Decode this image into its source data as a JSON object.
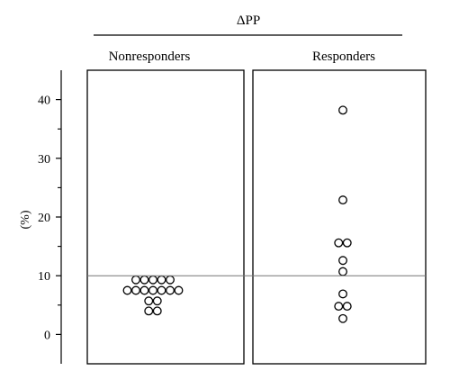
{
  "chart_data": {
    "type": "scatter",
    "title": "ΔPP",
    "ylabel": "(%)",
    "ylim": [
      -5,
      45
    ],
    "yticks": [
      0,
      10,
      20,
      30,
      40
    ],
    "yticks_minor": [
      5,
      15,
      25,
      35
    ],
    "reference_line": 10,
    "grid": false,
    "panels": [
      {
        "name": "Nonresponders",
        "points": [
          {
            "y": 9.3,
            "slot": -2
          },
          {
            "y": 9.3,
            "slot": -1
          },
          {
            "y": 9.3,
            "slot": 0
          },
          {
            "y": 9.3,
            "slot": 1
          },
          {
            "y": 9.3,
            "slot": 2
          },
          {
            "y": 7.5,
            "slot": -3
          },
          {
            "y": 7.5,
            "slot": -2
          },
          {
            "y": 7.5,
            "slot": -1
          },
          {
            "y": 7.5,
            "slot": 0
          },
          {
            "y": 7.5,
            "slot": 1
          },
          {
            "y": 7.5,
            "slot": 2
          },
          {
            "y": 7.5,
            "slot": 3
          },
          {
            "y": 5.7,
            "slot": -0.5
          },
          {
            "y": 5.7,
            "slot": 0.5
          },
          {
            "y": 4.0,
            "slot": -0.5
          },
          {
            "y": 4.0,
            "slot": 0.5
          }
        ]
      },
      {
        "name": "Responders",
        "points": [
          {
            "y": 38.2,
            "slot": 0
          },
          {
            "y": 22.9,
            "slot": 0
          },
          {
            "y": 15.6,
            "slot": -0.5
          },
          {
            "y": 15.6,
            "slot": 0.5
          },
          {
            "y": 12.6,
            "slot": 0
          },
          {
            "y": 10.7,
            "slot": 0
          },
          {
            "y": 6.9,
            "slot": 0
          },
          {
            "y": 4.8,
            "slot": -0.5
          },
          {
            "y": 4.8,
            "slot": 0.5
          },
          {
            "y": 2.7,
            "slot": 0
          }
        ]
      }
    ]
  }
}
